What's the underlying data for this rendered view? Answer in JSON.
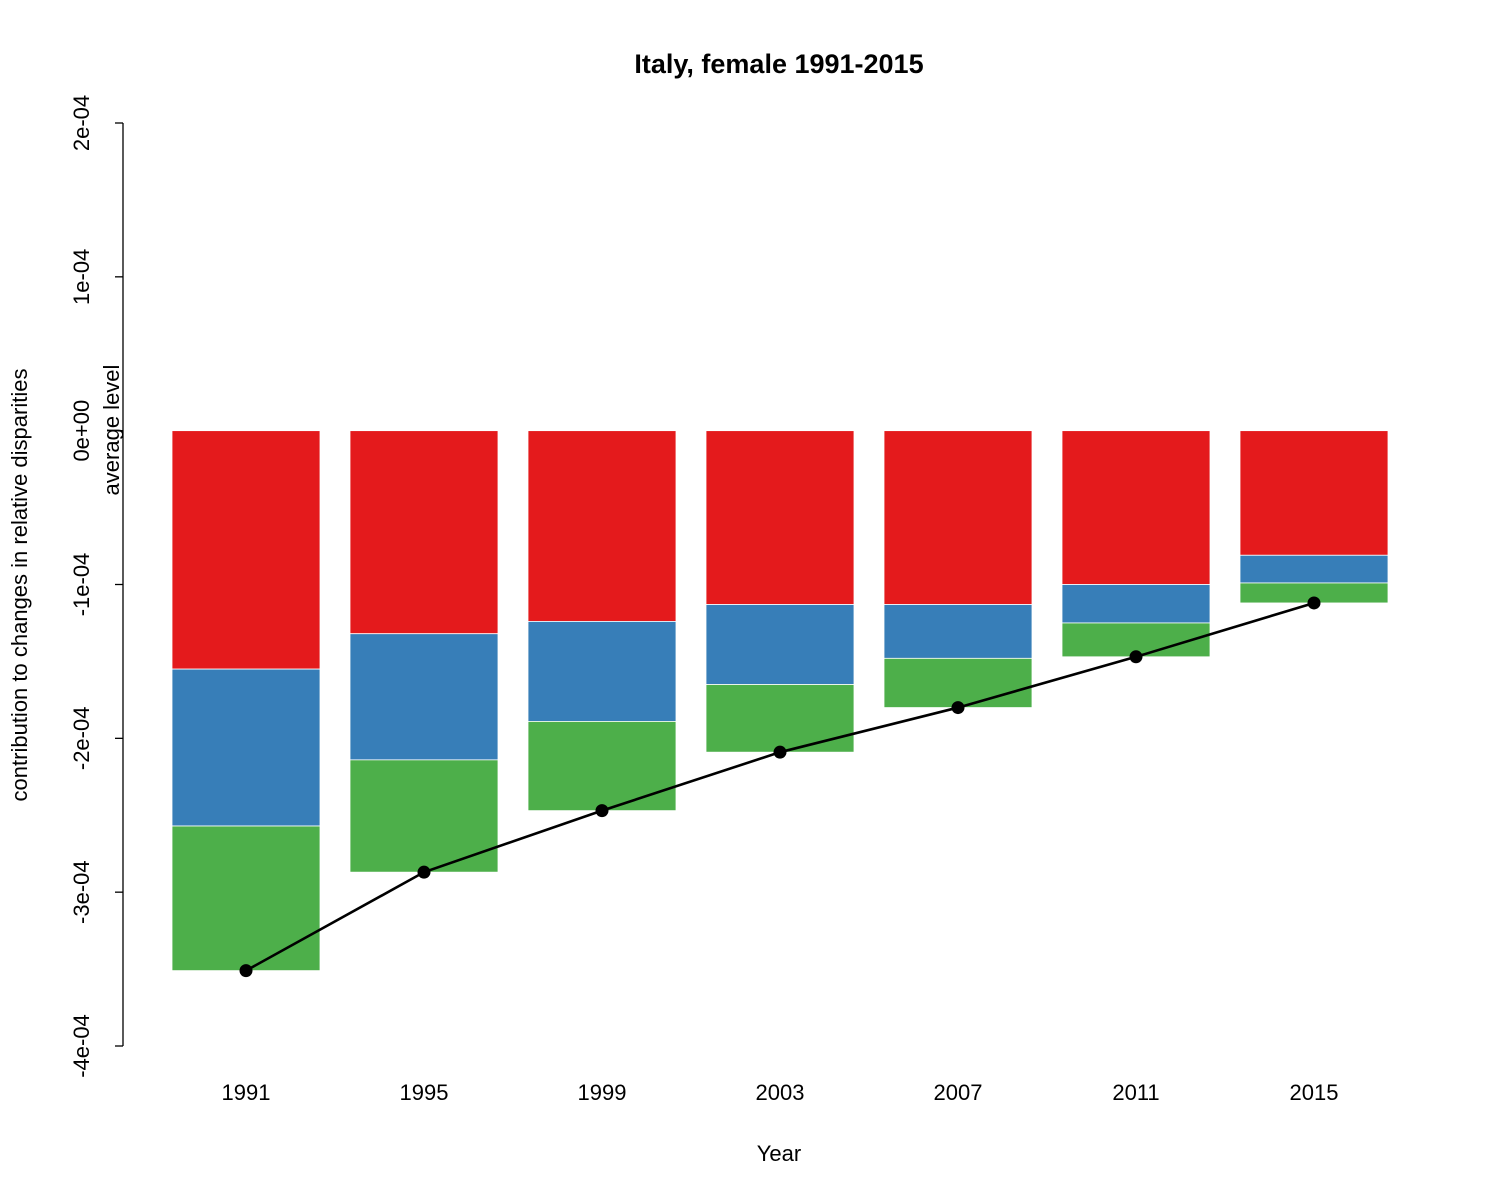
{
  "chart_data": {
    "type": "bar",
    "stacked": true,
    "title": "Italy, female 1991-2015",
    "xlabel": "Year",
    "ylabel": "contribution to changes in relative disparities",
    "annotation": "average level",
    "ylim": [
      -0.0004,
      0.0002
    ],
    "yticks": [
      -0.0004,
      -0.0003,
      -0.0002,
      -0.0001,
      0,
      0.0001,
      0.0002
    ],
    "ytick_labels": [
      "-4e-04",
      "-3e-04",
      "-2e-04",
      "-1e-04",
      "0e+00",
      "1e-04",
      "2e-04"
    ],
    "categories": [
      "1991",
      "1995",
      "1999",
      "2003",
      "2007",
      "2011",
      "2015"
    ],
    "grid": false,
    "series": [
      {
        "color": "#E41A1C",
        "values": [
          -0.000155,
          -0.000132,
          -0.000124,
          -0.000113,
          -0.000113,
          -0.0001,
          -8.1e-05
        ]
      },
      {
        "color": "#377EB8",
        "values": [
          -0.000102,
          -8.2e-05,
          -6.5e-05,
          -5.2e-05,
          -3.5e-05,
          -2.5e-05,
          -1.8e-05
        ]
      },
      {
        "color": "#4DAF4A",
        "values": [
          -9.4e-05,
          -7.3e-05,
          -5.8e-05,
          -4.4e-05,
          -3.2e-05,
          -2.2e-05,
          -1.3e-05
        ]
      }
    ],
    "line": {
      "color": "#000000",
      "values": [
        -0.000351,
        -0.000287,
        -0.000247,
        -0.000209,
        -0.00018,
        -0.000147,
        -0.000112
      ]
    }
  }
}
